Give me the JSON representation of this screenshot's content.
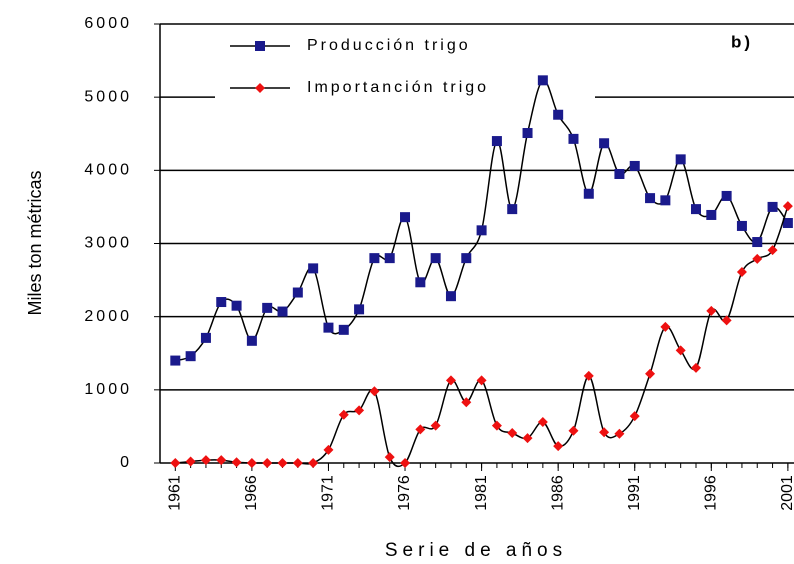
{
  "chart_data": {
    "type": "line",
    "annotation": "b)",
    "x_label": "Serie de años",
    "y_label": "Miles ton métricas",
    "x": [
      1961,
      1962,
      1963,
      1964,
      1965,
      1966,
      1967,
      1968,
      1969,
      1970,
      1971,
      1972,
      1973,
      1974,
      1975,
      1976,
      1977,
      1978,
      1979,
      1980,
      1981,
      1982,
      1983,
      1984,
      1985,
      1986,
      1987,
      1988,
      1989,
      1990,
      1991,
      1992,
      1993,
      1994,
      1995,
      1996,
      1997,
      1998,
      1999,
      2000,
      2001
    ],
    "series": [
      {
        "name": "Producción trigo",
        "color": "#1a1a8c",
        "marker": "square",
        "values": [
          1400,
          1460,
          1710,
          2200,
          2150,
          1670,
          2120,
          2070,
          2330,
          2660,
          1850,
          1820,
          2100,
          2800,
          2800,
          3360,
          2470,
          2800,
          2280,
          2800,
          3180,
          4400,
          3470,
          4510,
          5230,
          4760,
          4430,
          3680,
          4370,
          3950,
          4060,
          3620,
          3590,
          4150,
          3470,
          3390,
          3650,
          3240,
          3020,
          3500,
          3280
        ]
      },
      {
        "name": "Importanción trigo",
        "color": "#ee1111",
        "marker": "diamond",
        "values": [
          0,
          20,
          40,
          40,
          10,
          0,
          0,
          0,
          0,
          0,
          180,
          660,
          720,
          980,
          80,
          0,
          460,
          510,
          1130,
          830,
          1130,
          510,
          410,
          340,
          560,
          230,
          440,
          1190,
          420,
          400,
          640,
          1220,
          1860,
          1540,
          1300,
          2080,
          1950,
          2610,
          2790,
          2910,
          3510
        ]
      }
    ],
    "xlim": [
      1960,
      2001.4
    ],
    "xticks": [
      1961,
      1966,
      1971,
      1976,
      1981,
      1986,
      1991,
      1996,
      2001
    ],
    "ylim": [
      0,
      6000
    ],
    "yticks": [
      0,
      1000,
      2000,
      3000,
      4000,
      5000,
      6000
    ],
    "grid": true,
    "line_color": "#000000"
  }
}
